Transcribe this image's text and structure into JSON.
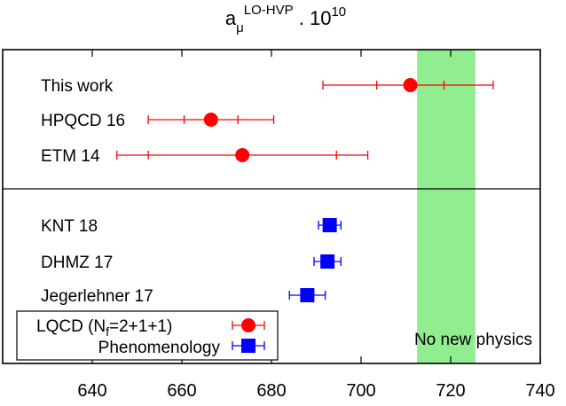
{
  "chart_data": {
    "type": "scatter",
    "title": {
      "base": "a",
      "subscript": "μ",
      "superscript": "LO-HVP",
      "factor_prefix": " . 10",
      "factor_exponent": "10"
    },
    "xlim": [
      620,
      740
    ],
    "xticks": [
      "640",
      "660",
      "680",
      "700",
      "720",
      "740"
    ],
    "xtick_values": [
      640,
      660,
      680,
      700,
      720,
      740
    ],
    "band": {
      "from": 712.5,
      "to": 725.5,
      "color": "#90ee90",
      "label": "No new physics"
    },
    "groups": [
      {
        "series": "LQCD",
        "color": "#ff0000",
        "marker": "circle",
        "points": [
          {
            "label": "This work",
            "value": 711,
            "err_inner": [
              703.5,
              718.5
            ],
            "err_outer": [
              691.5,
              729.5
            ]
          },
          {
            "label": "HPQCD 16",
            "value": 666.5,
            "err_inner": [
              660.5,
              672.5
            ],
            "err_outer": [
              652.5,
              680.5
            ]
          },
          {
            "label": "ETM 14",
            "value": 673.5,
            "err_inner": [
              652.5,
              694.5
            ],
            "err_outer": [
              645.5,
              701.5
            ]
          }
        ]
      },
      {
        "series": "Phenomenology",
        "color": "#0000ff",
        "marker": "square",
        "points": [
          {
            "label": "KNT 18",
            "value": 693,
            "err_inner": [
              690.5,
              695.5
            ],
            "err_outer": [
              690.5,
              695.5
            ]
          },
          {
            "label": "DHMZ 17",
            "value": 692.5,
            "err_inner": [
              689.5,
              695.5
            ],
            "err_outer": [
              689.5,
              695.5
            ]
          },
          {
            "label": "Jegerlehner 17",
            "value": 688,
            "err_inner": [
              684,
              692
            ],
            "err_outer": [
              684,
              692
            ]
          }
        ]
      }
    ],
    "legend": {
      "placement": "bottom-left",
      "entries": [
        {
          "series": "LQCD",
          "text_main": "LQCD (N",
          "text_sub": "f",
          "text_tail": "=2+1+1)",
          "color": "#ff0000",
          "marker": "circle"
        },
        {
          "series": "Phenomenology",
          "text_main": "Phenomenology",
          "color": "#0000ff",
          "marker": "square"
        }
      ]
    }
  }
}
